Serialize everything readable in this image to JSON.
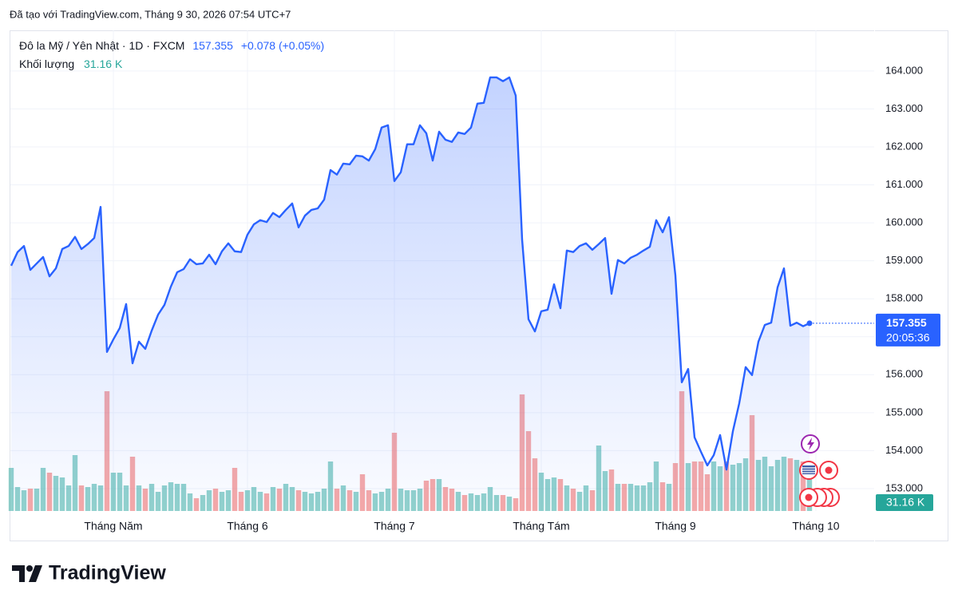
{
  "header": "Đã tạo với TradingView.com, Tháng 9 30, 2026 07:54 UTC+7",
  "brand": "TradingView",
  "chart_data": {
    "type": "line",
    "title": "Đô la Mỹ / Yên Nhật · 1D · FXCM",
    "change": "+0.078 (+0.05%)",
    "countdown": "20:05:36",
    "categories": [
      null,
      null,
      null,
      null,
      null,
      null,
      null,
      null,
      null,
      null,
      null,
      null,
      null,
      null,
      null,
      null,
      "Tháng Năm",
      null,
      null,
      null,
      null,
      null,
      null,
      null,
      null,
      null,
      null,
      null,
      null,
      null,
      null,
      null,
      null,
      null,
      null,
      null,
      null,
      "Tháng 6",
      null,
      null,
      null,
      null,
      null,
      null,
      null,
      null,
      null,
      null,
      null,
      null,
      null,
      null,
      null,
      null,
      null,
      null,
      null,
      null,
      null,
      null,
      "Tháng 7",
      null,
      null,
      null,
      null,
      null,
      null,
      null,
      null,
      null,
      null,
      null,
      null,
      null,
      null,
      null,
      null,
      null,
      null,
      null,
      null,
      null,
      null,
      "Tháng Tám",
      null,
      null,
      null,
      null,
      null,
      null,
      null,
      null,
      null,
      null,
      null,
      null,
      null,
      null,
      null,
      null,
      null,
      null,
      null,
      null,
      "Tháng 9",
      null,
      null,
      null,
      null,
      null,
      null,
      null,
      null,
      null,
      null,
      null,
      null,
      null,
      null,
      null,
      null,
      null,
      null,
      null,
      null,
      null,
      "Tháng 10"
    ],
    "series": [
      {
        "color": "#2962ff",
        "values": [
          158.87,
          159.23,
          159.39,
          158.76,
          158.93,
          159.1,
          158.59,
          158.8,
          159.31,
          159.39,
          159.63,
          159.31,
          159.44,
          159.6,
          160.42,
          156.6,
          156.93,
          157.23,
          157.86,
          156.3,
          156.87,
          156.68,
          157.16,
          157.58,
          157.84,
          158.32,
          158.7,
          158.78,
          159.04,
          158.91,
          158.93,
          159.16,
          158.91,
          159.25,
          159.46,
          159.25,
          159.23,
          159.69,
          159.96,
          160.07,
          160.02,
          160.26,
          160.15,
          160.34,
          160.51,
          159.88,
          160.19,
          160.34,
          160.38,
          160.61,
          161.39,
          161.27,
          161.56,
          161.54,
          161.77,
          161.75,
          161.64,
          161.94,
          162.51,
          162.57,
          161.1,
          161.33,
          162.07,
          162.07,
          162.57,
          162.36,
          161.64,
          162.4,
          162.19,
          162.13,
          162.38,
          162.34,
          162.51,
          163.14,
          163.16,
          163.83,
          163.83,
          163.73,
          163.83,
          163.35,
          159.56,
          157.46,
          157.14,
          157.67,
          157.71,
          158.38,
          157.75,
          159.27,
          159.23,
          159.39,
          159.46,
          159.29,
          159.44,
          159.6,
          158.13,
          159.02,
          158.93,
          159.08,
          159.16,
          159.27,
          159.37,
          160.07,
          159.75,
          160.15,
          158.62,
          155.8,
          156.15,
          154.35,
          153.97,
          153.61,
          153.88,
          154.41,
          153.5,
          154.51,
          155.25,
          156.2,
          155.99,
          156.87,
          157.31,
          157.37,
          158.3,
          158.8,
          157.29,
          157.37,
          157.277,
          157.355,
          null
        ]
      }
    ],
    "volume": {
      "name": "Khối lượng",
      "last_value_label": "31.16 K",
      "up_color": "rgba(38,166,154,0.5)",
      "down_color": "rgba(239,83,80,0.5)",
      "label_color": "#26a69a",
      "values": [
        27,
        15,
        13,
        14,
        14,
        27,
        24,
        22,
        21,
        16,
        35,
        16,
        15,
        17,
        16,
        75,
        24,
        24,
        16,
        34,
        16,
        14,
        17,
        12,
        16,
        18,
        17,
        17,
        11,
        8,
        10,
        13,
        14,
        12,
        13,
        27,
        12,
        13,
        15,
        12,
        11,
        15,
        14,
        17,
        15,
        13,
        12,
        11,
        12,
        14,
        31,
        14,
        16,
        13,
        12,
        23,
        13,
        11,
        12,
        14,
        49,
        14,
        13,
        13,
        14,
        19,
        20,
        20,
        15,
        14,
        12,
        10,
        11,
        10,
        11,
        15,
        10,
        10,
        9,
        8,
        73,
        50,
        33,
        24,
        20,
        21,
        20,
        16,
        14,
        12,
        16,
        13,
        41,
        25,
        26,
        17,
        17,
        17,
        16,
        16,
        18,
        31,
        18,
        17,
        30,
        75,
        30,
        31,
        31,
        23,
        31,
        28,
        31,
        29,
        30,
        33,
        60,
        32,
        34,
        28,
        32,
        34,
        33,
        32,
        31,
        31.16,
        null
      ]
    },
    "ylim": [
      152.41,
      165.07
    ],
    "yticks": [
      {
        "value": 153,
        "label": "153.000"
      },
      {
        "value": 154,
        "label": "154.000"
      },
      {
        "value": 155,
        "label": "155.000"
      },
      {
        "value": 156,
        "label": "156.000"
      },
      {
        "value": 157,
        "label": "157.000"
      },
      {
        "value": 158,
        "label": "158.000"
      },
      {
        "value": 159,
        "label": "159.000"
      },
      {
        "value": 160,
        "label": "160.000"
      },
      {
        "value": 161,
        "label": "161.000"
      },
      {
        "value": 162,
        "label": "162.000"
      },
      {
        "value": 163,
        "label": "163.000"
      },
      {
        "value": 164,
        "label": "164.000"
      }
    ],
    "grid": true
  }
}
